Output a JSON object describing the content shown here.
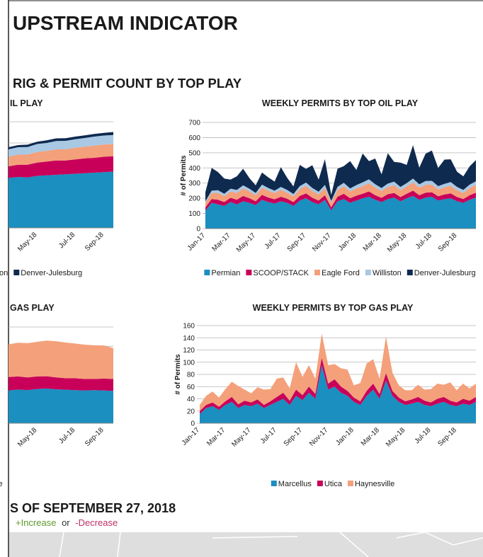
{
  "header": {
    "title": "UPSTREAM INDICATOR"
  },
  "section_title": "RIG & PERMIT COUNT BY TOP PLAY",
  "footer": {
    "heading": "S OF SEPTEMBER 27, 2018",
    "increase": "+Increase",
    "or": "or",
    "decrease": "-Decrease"
  },
  "chart_data": [
    {
      "type": "stacked_area",
      "title": "IL PLAY",
      "categories": [
        null,
        null,
        null,
        "May-18",
        null,
        null,
        null,
        "Jul-18",
        null,
        null,
        "Sep-18",
        null
      ],
      "series": [
        {
          "color": "#1a8fc0",
          "values": [
            470,
            480,
            475,
            490,
            495,
            500,
            505,
            510,
            515,
            520,
            525,
            530
          ]
        },
        {
          "color": "#c8005a",
          "values": [
            110,
            115,
            120,
            125,
            130,
            135,
            130,
            135,
            140,
            140,
            145,
            145
          ]
        },
        {
          "color": "#f4a07a",
          "values": [
            90,
            95,
            95,
            100,
            100,
            105,
            105,
            110,
            110,
            115,
            115,
            115
          ]
        },
        {
          "name": "ton",
          "color": "#a9c8e4",
          "values": [
            70,
            70,
            72,
            75,
            75,
            78,
            80,
            80,
            82,
            85,
            85,
            85
          ]
        },
        {
          "name": "Denver-Julesburg",
          "color": "#0f2a4f",
          "values": [
            20,
            20,
            22,
            22,
            25,
            25,
            25,
            25,
            25,
            25,
            25,
            28
          ]
        }
      ],
      "ylim": [
        0,
        1000
      ],
      "yticks": [
        0,
        200,
        400,
        600,
        800,
        1000
      ],
      "grid": true
    },
    {
      "type": "stacked_area",
      "title": "WEEKLY PERMITS BY TOP OIL PLAY",
      "y_label": "# of Permits",
      "categories": [
        "Jan-17",
        null,
        null,
        null,
        "Mar-17",
        null,
        null,
        null,
        "May-17",
        null,
        null,
        null,
        "Jul-17",
        null,
        null,
        null,
        "Sep-17",
        null,
        null,
        null,
        "Nov-17",
        null,
        null,
        null,
        "Jan-18",
        null,
        null,
        null,
        "Mar-18",
        null,
        null,
        null,
        "May-18",
        null,
        null,
        null,
        "Jul-18",
        null,
        null,
        null,
        "Sep-18",
        null,
        null,
        null
      ],
      "series": [
        {
          "name": "Permian",
          "color": "#1a8fc0",
          "values": [
            120,
            170,
            160,
            150,
            175,
            160,
            180,
            170,
            155,
            190,
            175,
            165,
            180,
            170,
            150,
            185,
            200,
            175,
            160,
            190,
            120,
            180,
            195,
            170,
            185,
            200,
            210,
            190,
            175,
            195,
            205,
            180,
            200,
            215,
            190,
            205,
            210,
            185,
            195,
            200,
            180,
            170,
            190,
            205
          ]
        },
        {
          "name": "SCOOP/STACK",
          "color": "#c8005a",
          "values": [
            20,
            25,
            30,
            25,
            28,
            30,
            35,
            30,
            25,
            32,
            30,
            28,
            30,
            27,
            25,
            30,
            32,
            28,
            25,
            30,
            20,
            30,
            35,
            30,
            32,
            30,
            35,
            30,
            28,
            32,
            30,
            28,
            30,
            35,
            30,
            32,
            30,
            28,
            30,
            32,
            28,
            25,
            30,
            32
          ]
        },
        {
          "name": "Eagle Ford",
          "color": "#f4a07a",
          "values": [
            30,
            40,
            45,
            40,
            42,
            45,
            50,
            45,
            40,
            48,
            45,
            42,
            45,
            40,
            38,
            45,
            50,
            45,
            40,
            48,
            30,
            45,
            50,
            45,
            48,
            50,
            55,
            50,
            45,
            48,
            50,
            45,
            48,
            55,
            50,
            52,
            50,
            45,
            48,
            50,
            45,
            40,
            48,
            50
          ]
        },
        {
          "name": "Williston",
          "color": "#a9c8e4",
          "values": [
            10,
            15,
            18,
            15,
            18,
            20,
            20,
            18,
            15,
            20,
            18,
            15,
            20,
            18,
            15,
            20,
            22,
            20,
            18,
            20,
            12,
            20,
            22,
            20,
            22,
            25,
            25,
            22,
            20,
            22,
            25,
            22,
            22,
            25,
            22,
            25,
            25,
            22,
            22,
            25,
            22,
            20,
            22,
            25
          ]
        },
        {
          "name": "Denver-Julesburg",
          "color": "#0f2a4f",
          "values": [
            60,
            150,
            120,
            100,
            60,
            90,
            110,
            70,
            50,
            80,
            70,
            60,
            130,
            80,
            50,
            140,
            90,
            150,
            80,
            170,
            40,
            120,
            110,
            180,
            100,
            190,
            120,
            170,
            90,
            200,
            130,
            160,
            120,
            220,
            110,
            180,
            200,
            120,
            160,
            150,
            100,
            90,
            120,
            140
          ]
        }
      ],
      "ylim": [
        0,
        700
      ],
      "yticks": [
        0,
        100,
        200,
        300,
        400,
        500,
        600,
        700
      ],
      "grid": true
    },
    {
      "type": "stacked_area",
      "title": "GAS PLAY",
      "categories": [
        null,
        null,
        null,
        "May-18",
        null,
        null,
        null,
        "Jul-18",
        null,
        null,
        "Sep-18",
        null
      ],
      "series": [
        {
          "color": "#1a8fc0",
          "values": [
            170,
            175,
            172,
            178,
            180,
            176,
            174,
            172,
            170,
            172,
            170,
            168
          ]
        },
        {
          "color": "#c8005a",
          "values": [
            70,
            68,
            66,
            65,
            64,
            62,
            60,
            62,
            60,
            58,
            62,
            62
          ]
        },
        {
          "name": "esville",
          "color": "#f4a07a",
          "values": [
            170,
            175,
            178,
            180,
            185,
            188,
            185,
            180,
            178,
            175,
            172,
            160
          ]
        }
      ],
      "ylim": [
        0,
        500
      ],
      "yticks": [
        0,
        100,
        200,
        300,
        400,
        500
      ],
      "grid": true
    },
    {
      "type": "stacked_area",
      "title": "WEEKLY PERMITS BY TOP GAS PLAY",
      "y_label": "# of Permits",
      "categories": [
        "Jan-17",
        null,
        null,
        null,
        "Mar-17",
        null,
        null,
        null,
        "May-17",
        null,
        null,
        null,
        "Jul-17",
        null,
        null,
        null,
        "Sep-17",
        null,
        null,
        null,
        "Nov-17",
        null,
        null,
        null,
        "Jan-18",
        null,
        null,
        null,
        "Mar-18",
        null,
        null,
        null,
        "May-18",
        null,
        null,
        null,
        "Jul-18",
        null,
        null,
        null,
        "Sep-18",
        null,
        null,
        null
      ],
      "series": [
        {
          "name": "Marcellus",
          "color": "#1a8fc0",
          "values": [
            15,
            25,
            28,
            22,
            30,
            35,
            25,
            30,
            28,
            32,
            25,
            30,
            35,
            40,
            30,
            45,
            38,
            50,
            40,
            95,
            55,
            60,
            50,
            45,
            35,
            30,
            45,
            55,
            40,
            70,
            45,
            35,
            30,
            32,
            35,
            30,
            28,
            32,
            35,
            30,
            28,
            32,
            30,
            35
          ]
        },
        {
          "name": "Utica",
          "color": "#c8005a",
          "values": [
            5,
            5,
            6,
            5,
            6,
            8,
            6,
            7,
            6,
            7,
            5,
            6,
            8,
            10,
            7,
            10,
            8,
            10,
            8,
            12,
            10,
            12,
            10,
            8,
            7,
            6,
            8,
            10,
            8,
            12,
            8,
            7,
            6,
            7,
            8,
            7,
            6,
            8,
            8,
            7,
            6,
            8,
            7,
            8
          ]
        },
        {
          "name": "Haynesville",
          "color": "#f4a07a",
          "values": [
            10,
            15,
            18,
            15,
            20,
            25,
            30,
            18,
            15,
            20,
            25,
            20,
            30,
            25,
            20,
            45,
            30,
            35,
            25,
            40,
            30,
            25,
            30,
            35,
            20,
            30,
            45,
            40,
            25,
            60,
            30,
            20,
            18,
            15,
            20,
            18,
            22,
            25,
            20,
            30,
            20,
            25,
            20,
            22
          ]
        }
      ],
      "ylim": [
        0,
        160
      ],
      "yticks": [
        0,
        20,
        40,
        60,
        80,
        100,
        120,
        140,
        160
      ],
      "grid": true
    }
  ]
}
